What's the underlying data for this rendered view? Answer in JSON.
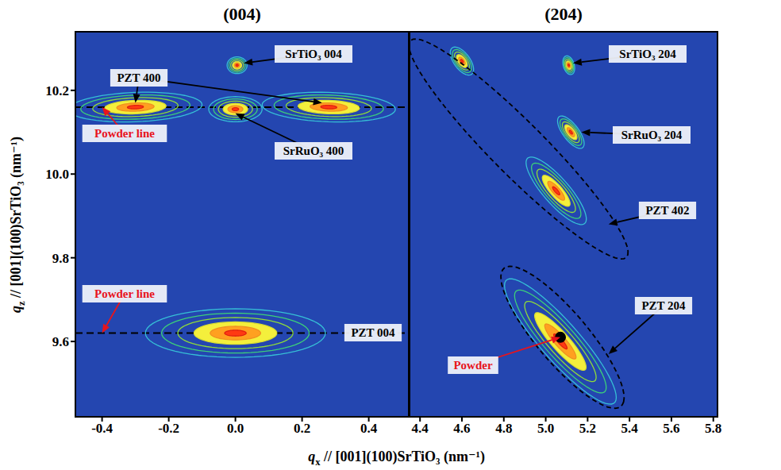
{
  "chart_data": [
    {
      "type": "contour",
      "title": "(004)",
      "x_label": "qx // [001](100)SrTiO₃ (nm⁻¹)",
      "y_label": "qz // [001](100)SrTiO₃ (nm⁻¹)",
      "xlim": [
        -0.48,
        0.52
      ],
      "xticks": [
        -0.4,
        -0.2,
        {
          "value": 0,
          "label": "0.0"
        },
        0.2,
        0.4
      ],
      "ylim": [
        9.42,
        10.34
      ],
      "yticks": [
        9.6,
        9.8,
        {
          "value": 10,
          "label": "10.0"
        },
        10.2
      ],
      "peaks": [
        {
          "q_x": 0.005,
          "q_z": 10.26,
          "width_tangential": 0.03,
          "width_radial": 0.02
        },
        {
          "q_x": -0.3,
          "q_z": 10.16,
          "width_tangential": 0.2,
          "width_radial": 0.035
        },
        {
          "q_x": 0.28,
          "q_z": 10.16,
          "width_tangential": 0.2,
          "width_radial": 0.035
        },
        {
          "q_x": 0.0,
          "q_z": 10.155,
          "width_tangential": 0.08,
          "width_radial": 0.03
        },
        {
          "q_x": 0.0,
          "q_z": 9.62,
          "width_tangential": 0.27,
          "width_radial": 0.058
        }
      ],
      "powder_lines": [
        10.16,
        9.62
      ],
      "annotations": [
        {
          "text": "SrTiO₃ 004",
          "targets": [
            [
              0.025,
              10.265
            ]
          ]
        },
        {
          "text": "PZT 400",
          "targets": [
            [
              -0.3,
              10.17
            ],
            [
              0.26,
              10.17
            ]
          ]
        },
        {
          "text": "SrRuO₃ 400",
          "targets": [
            [
              0.0,
              10.145
            ]
          ]
        },
        {
          "text": "PZT 004",
          "targets": []
        },
        {
          "text": "Powder line",
          "color": "#e8141c",
          "targets": [
            [
              -0.4,
              10.16
            ]
          ]
        },
        {
          "text": "Powder line",
          "color": "#e8141c",
          "targets": [
            [
              -0.4,
              9.62
            ]
          ]
        }
      ]
    },
    {
      "type": "contour",
      "title": "(204)",
      "tick_labels": "x",
      "xlim": [
        4.35,
        5.82
      ],
      "xticks": [
        4.4,
        4.6,
        4.8,
        {
          "value": 5,
          "label": "5.0"
        },
        5.2,
        5.4,
        5.6,
        5.8
      ],
      "ylim": [
        9.42,
        10.34
      ],
      "yticks": [
        9.6,
        9.8,
        {
          "value": 10,
          "label": "10.0"
        },
        10.2
      ],
      "peaks": [
        {
          "q_x": 5.11,
          "q_z": 10.26,
          "width_tangential": 0.03,
          "width_radial": 0.02
        },
        {
          "q_x": 5.12,
          "q_z": 10.1,
          "width_tangential": 0.07,
          "width_radial": 0.025
        },
        {
          "q_x": 5.05,
          "q_z": 9.96,
          "width_tangential": 0.16,
          "width_radial": 0.04
        },
        {
          "q_x": 4.6,
          "q_z": 10.27,
          "width_tangential": 0.06,
          "width_radial": 0.025
        },
        {
          "q_x": 5.07,
          "q_z": 9.6,
          "width_tangential": 0.3,
          "width_radial": 0.06
        }
      ],
      "outlines": [
        {
          "q_x": 4.87,
          "q_z": 10.06,
          "width_tangential": 0.58,
          "width_radial": 0.08
        },
        {
          "q_x": 5.08,
          "q_z": 9.61,
          "width_tangential": 0.33,
          "width_radial": 0.08
        }
      ],
      "powder_points": [
        [
          5.07,
          9.61
        ]
      ],
      "annotations": [
        {
          "text": "SrTiO₃ 204",
          "targets": [
            [
              5.13,
              10.265
            ]
          ]
        },
        {
          "text": "SrRuO₃ 204",
          "targets": [
            [
              5.17,
              10.1
            ]
          ]
        },
        {
          "text": "PZT 402",
          "targets": [
            [
              5.3,
              9.88
            ]
          ]
        },
        {
          "text": "PZT 204",
          "targets": [
            [
              5.3,
              9.57
            ]
          ]
        },
        {
          "text": "Powder",
          "color": "#e8141c",
          "targets": [
            [
              5.07,
              9.61
            ]
          ]
        }
      ]
    }
  ]
}
